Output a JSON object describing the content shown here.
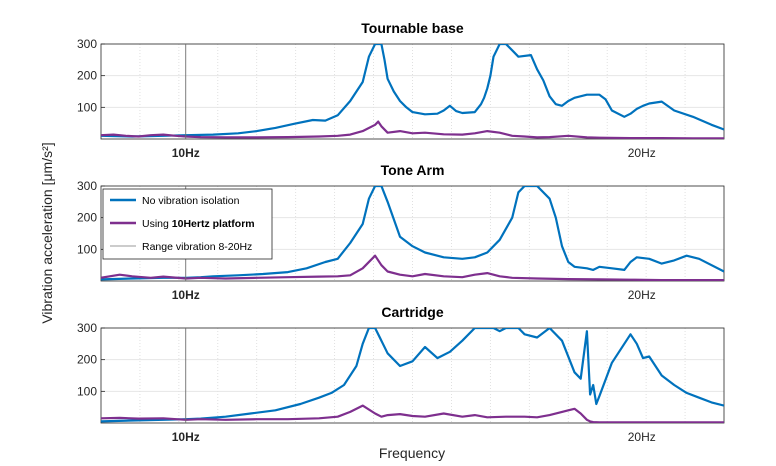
{
  "chart_data": [
    {
      "type": "line",
      "title": "Tournable base",
      "ylim": [
        0,
        300
      ],
      "yticks": [
        100,
        200,
        300
      ],
      "xlim": [
        0,
        1
      ],
      "xticks": [
        {
          "label": "10Hz",
          "x": 0.136,
          "bold": true
        },
        {
          "label": "20Hz",
          "x": 0.868,
          "bold": false
        }
      ],
      "grid": true,
      "series": [
        {
          "name": "No vibration  isolation",
          "color": "#0072BD",
          "x": [
            0,
            0.05,
            0.1,
            0.136,
            0.18,
            0.22,
            0.25,
            0.28,
            0.31,
            0.34,
            0.36,
            0.38,
            0.4,
            0.42,
            0.43,
            0.44,
            0.445,
            0.45,
            0.455,
            0.46,
            0.47,
            0.48,
            0.49,
            0.5,
            0.52,
            0.54,
            0.55,
            0.56,
            0.57,
            0.58,
            0.6,
            0.61,
            0.615,
            0.62,
            0.625,
            0.63,
            0.64,
            0.65,
            0.66,
            0.67,
            0.69,
            0.7,
            0.71,
            0.72,
            0.73,
            0.74,
            0.75,
            0.76,
            0.78,
            0.8,
            0.81,
            0.82,
            0.84,
            0.85,
            0.86,
            0.87,
            0.88,
            0.9,
            0.92,
            0.95,
            0.98,
            1.0
          ],
          "y": [
            10,
            8,
            10,
            12,
            14,
            18,
            25,
            35,
            48,
            60,
            58,
            75,
            120,
            180,
            260,
            320,
            330,
            300,
            250,
            190,
            150,
            120,
            100,
            85,
            78,
            80,
            90,
            105,
            88,
            82,
            85,
            110,
            130,
            160,
            200,
            260,
            320,
            330,
            280,
            260,
            265,
            220,
            185,
            135,
            110,
            105,
            120,
            130,
            140,
            140,
            125,
            90,
            70,
            80,
            95,
            105,
            112,
            118,
            90,
            70,
            45,
            30
          ]
        },
        {
          "name": "Using 10Hertz platform",
          "color": "#7E2F8E",
          "x": [
            0,
            0.02,
            0.04,
            0.06,
            0.08,
            0.1,
            0.12,
            0.136,
            0.16,
            0.2,
            0.25,
            0.3,
            0.35,
            0.38,
            0.4,
            0.42,
            0.44,
            0.445,
            0.45,
            0.46,
            0.48,
            0.5,
            0.52,
            0.55,
            0.58,
            0.6,
            0.62,
            0.64,
            0.66,
            0.68,
            0.7,
            0.72,
            0.75,
            0.78,
            0.8,
            0.85,
            0.9,
            0.95,
            1.0
          ],
          "y": [
            12,
            14,
            10,
            8,
            12,
            14,
            10,
            8,
            6,
            5,
            5,
            6,
            8,
            10,
            14,
            25,
            45,
            55,
            40,
            20,
            25,
            18,
            20,
            15,
            14,
            18,
            25,
            20,
            10,
            8,
            5,
            6,
            10,
            5,
            4,
            3,
            3,
            2,
            2
          ]
        },
        {
          "name": "Range vibration 8-20Hz",
          "color": "#6e6e6e",
          "vline_x": 0.136
        }
      ]
    },
    {
      "type": "line",
      "title": "Tone  Arm",
      "ylim": [
        0,
        300
      ],
      "yticks": [
        100,
        200,
        300
      ],
      "xlim": [
        0,
        1
      ],
      "xticks": [
        {
          "label": "10Hz",
          "x": 0.136,
          "bold": true
        },
        {
          "label": "20Hz",
          "x": 0.868,
          "bold": false
        }
      ],
      "grid": true,
      "series": [
        {
          "name": "No vibration  isolation",
          "color": "#0072BD",
          "x": [
            0,
            0.05,
            0.1,
            0.136,
            0.16,
            0.18,
            0.22,
            0.26,
            0.3,
            0.33,
            0.36,
            0.38,
            0.4,
            0.42,
            0.43,
            0.44,
            0.45,
            0.46,
            0.48,
            0.5,
            0.52,
            0.55,
            0.58,
            0.6,
            0.62,
            0.64,
            0.66,
            0.67,
            0.68,
            0.7,
            0.72,
            0.73,
            0.74,
            0.75,
            0.76,
            0.78,
            0.79,
            0.8,
            0.82,
            0.84,
            0.85,
            0.86,
            0.88,
            0.9,
            0.92,
            0.94,
            0.96,
            1.0
          ],
          "y": [
            5,
            8,
            10,
            10,
            12,
            15,
            18,
            22,
            28,
            40,
            60,
            70,
            120,
            180,
            260,
            320,
            320,
            250,
            140,
            110,
            90,
            75,
            70,
            75,
            90,
            130,
            200,
            280,
            320,
            300,
            260,
            200,
            110,
            60,
            45,
            40,
            35,
            45,
            40,
            35,
            60,
            75,
            70,
            55,
            65,
            80,
            70,
            30
          ]
        },
        {
          "name": "Using 10Hertz platform",
          "color": "#7E2F8E",
          "x": [
            0,
            0.03,
            0.05,
            0.08,
            0.1,
            0.136,
            0.16,
            0.2,
            0.25,
            0.3,
            0.35,
            0.38,
            0.4,
            0.42,
            0.44,
            0.45,
            0.46,
            0.48,
            0.5,
            0.52,
            0.55,
            0.58,
            0.6,
            0.62,
            0.64,
            0.66,
            0.7,
            0.75,
            0.8,
            0.85,
            0.9,
            0.95,
            1.0
          ],
          "y": [
            10,
            20,
            15,
            10,
            14,
            8,
            10,
            8,
            10,
            12,
            14,
            15,
            18,
            40,
            80,
            50,
            30,
            20,
            15,
            22,
            15,
            12,
            20,
            25,
            15,
            10,
            8,
            6,
            5,
            4,
            3,
            3,
            3
          ]
        },
        {
          "name": "Range vibration 8-20Hz",
          "color": "#6e6e6e",
          "vline_x": 0.136
        }
      ]
    },
    {
      "type": "line",
      "title": "Cartridge",
      "ylim": [
        0,
        300
      ],
      "yticks": [
        100,
        200,
        300
      ],
      "xlim": [
        0,
        1
      ],
      "xticks": [
        {
          "label": "10Hz",
          "x": 0.136,
          "bold": true
        },
        {
          "label": "20Hz",
          "x": 0.868,
          "bold": false
        }
      ],
      "grid": true,
      "xlabel": "Frequency",
      "series": [
        {
          "name": "No vibration  isolation",
          "color": "#0072BD",
          "x": [
            0,
            0.05,
            0.1,
            0.136,
            0.16,
            0.2,
            0.24,
            0.28,
            0.32,
            0.35,
            0.37,
            0.39,
            0.41,
            0.42,
            0.43,
            0.435,
            0.44,
            0.45,
            0.46,
            0.48,
            0.5,
            0.52,
            0.54,
            0.56,
            0.58,
            0.6,
            0.62,
            0.63,
            0.64,
            0.65,
            0.66,
            0.67,
            0.68,
            0.7,
            0.72,
            0.74,
            0.76,
            0.77,
            0.78,
            0.785,
            0.79,
            0.795,
            0.8,
            0.82,
            0.84,
            0.85,
            0.86,
            0.87,
            0.88,
            0.9,
            0.92,
            0.94,
            0.96,
            0.98,
            1.0
          ],
          "y": [
            5,
            8,
            10,
            12,
            14,
            20,
            30,
            40,
            60,
            80,
            95,
            120,
            180,
            250,
            310,
            330,
            320,
            260,
            220,
            180,
            195,
            240,
            205,
            225,
            260,
            300,
            330,
            320,
            290,
            300,
            320,
            300,
            280,
            270,
            300,
            260,
            160,
            140,
            290,
            90,
            120,
            60,
            85,
            190,
            250,
            280,
            250,
            205,
            210,
            150,
            120,
            95,
            80,
            65,
            55
          ]
        },
        {
          "name": "Using 10Hertz platform",
          "color": "#7E2F8E",
          "x": [
            0,
            0.03,
            0.06,
            0.1,
            0.136,
            0.16,
            0.2,
            0.25,
            0.3,
            0.35,
            0.38,
            0.4,
            0.42,
            0.44,
            0.45,
            0.46,
            0.48,
            0.5,
            0.52,
            0.55,
            0.58,
            0.6,
            0.62,
            0.65,
            0.68,
            0.7,
            0.72,
            0.74,
            0.75,
            0.76,
            0.77,
            0.78,
            0.785,
            0.79,
            0.8,
            0.85,
            0.9,
            0.95,
            1.0
          ],
          "y": [
            15,
            16,
            14,
            15,
            10,
            12,
            10,
            12,
            12,
            15,
            20,
            35,
            55,
            30,
            20,
            25,
            28,
            22,
            20,
            30,
            20,
            25,
            18,
            20,
            20,
            18,
            25,
            35,
            40,
            45,
            30,
            10,
            5,
            3,
            2,
            2,
            2,
            2,
            2
          ]
        },
        {
          "name": "Range vibration 8-20Hz",
          "color": "#6e6e6e",
          "vline_x": 0.136
        }
      ]
    }
  ],
  "ylabel_main": "Vibration acceleration [μm/s²]",
  "xlabel": "Frequency",
  "legend": {
    "placement": "upper-left of middle panel",
    "entries": [
      {
        "label": "No vibration  isolation",
        "color": "#0072BD",
        "bold_part": ""
      },
      {
        "label_prefix": "Using ",
        "label_bold": "10Hertz platform",
        "color": "#7E2F8E"
      },
      {
        "label": "Range vibration 8-20Hz",
        "color": "#9a9a9a",
        "bold_part": ""
      }
    ]
  }
}
